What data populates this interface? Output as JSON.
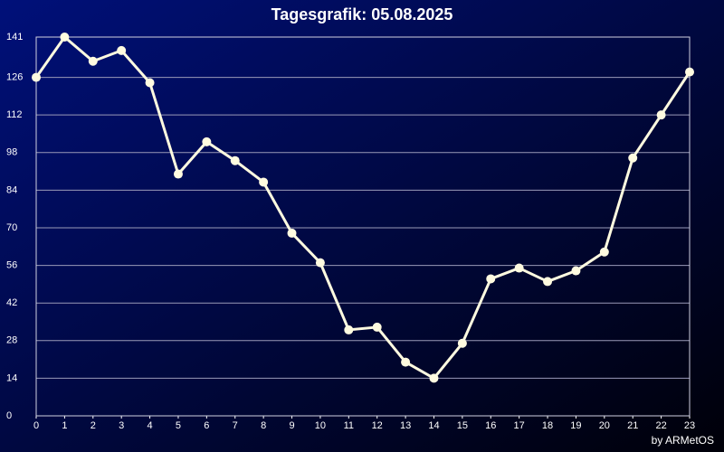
{
  "chart_data": {
    "type": "line",
    "title": "Tagesgrafik: 05.08.2025",
    "credit": "by ARMetOS",
    "x": [
      0,
      1,
      2,
      3,
      4,
      5,
      6,
      7,
      8,
      9,
      10,
      11,
      12,
      13,
      14,
      15,
      16,
      17,
      18,
      19,
      20,
      21,
      22,
      23
    ],
    "values": [
      126,
      141,
      132,
      136,
      124,
      90,
      102,
      95,
      87,
      68,
      57,
      32,
      33,
      20,
      14,
      27,
      51,
      55,
      50,
      54,
      61,
      96,
      112,
      128
    ],
    "color": "#fffbe0",
    "xlim": [
      0,
      23
    ],
    "xticks": [
      0,
      1,
      2,
      3,
      4,
      5,
      6,
      7,
      8,
      9,
      10,
      11,
      12,
      13,
      14,
      15,
      16,
      17,
      18,
      19,
      20,
      21,
      22,
      23
    ],
    "ylim": [
      0,
      141
    ],
    "yticks": [
      0,
      14,
      28,
      42,
      56,
      70,
      84,
      98,
      112,
      126,
      141
    ],
    "grid": true
  }
}
